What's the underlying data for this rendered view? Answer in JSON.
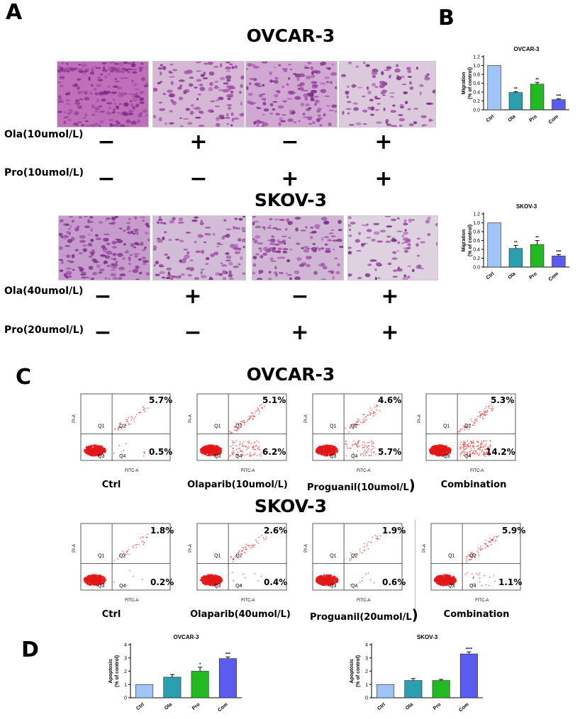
{
  "panel_letters": {
    "a": "A",
    "b": "B",
    "c": "C",
    "d": "D"
  },
  "panelA": {
    "ovcar": {
      "title": "OVCAR-3",
      "row1_label": "Ola(10umol/L)",
      "row2_label": "Pro(10umol/L)",
      "row1_signs": [
        "−",
        "+",
        "−",
        "+"
      ],
      "row2_signs": [
        "−",
        "−",
        "+",
        "+"
      ]
    },
    "skov": {
      "title": "SKOV-3",
      "row1_label": "Ola(40umol/L)",
      "row2_label": "Pro(20umol/L)",
      "row1_signs": [
        "−",
        "+",
        "−",
        "+"
      ],
      "row2_signs": [
        "−",
        "−",
        "+",
        "+"
      ]
    }
  },
  "panelC": {
    "ovcar": {
      "title": "OVCAR-3",
      "plots": [
        {
          "caption": "Ctrl",
          "q2": "5.7%",
          "q4": "0.5%"
        },
        {
          "caption": "Olaparib(10umol/L)",
          "q2": "5.1%",
          "q4": "6.2%"
        },
        {
          "caption": "Proguanil(10umol/L",
          "paren": ")",
          "q2": "4.6%",
          "q4": "5.7%"
        },
        {
          "caption": "Combination",
          "q2": "5.3%",
          "q4": "14.2%"
        }
      ]
    },
    "skov": {
      "title": "SKOV-3",
      "plots": [
        {
          "caption": "Ctrl",
          "q2": "1.8%",
          "q4": "0.2%"
        },
        {
          "caption": "Olaparib(40umol/L)",
          "q2": "2.6%",
          "q4": "0.4%"
        },
        {
          "caption": "Proguanil(20umol/L",
          "paren": ")",
          "q2": "1.9%",
          "q4": "0.6%"
        },
        {
          "caption": "Combination",
          "q2": "5.9%",
          "q4": "1.1%"
        }
      ]
    },
    "axis": {
      "x": "FITC-A",
      "y": "PI-A",
      "q1": "Q1",
      "q2": "Q2",
      "q3": "Q3",
      "q4": "Q4"
    }
  },
  "chart_data": [
    {
      "id": "b1",
      "type": "bar",
      "title": "OVCAR-3",
      "ylabel": "Migration\n(% of control)",
      "categories": [
        "Ctrl",
        "Ola",
        "Pro",
        "Com"
      ],
      "values": [
        1.0,
        0.39,
        0.58,
        0.23
      ],
      "errors": [
        0,
        0.02,
        0.04,
        0.02
      ],
      "sig": [
        "",
        "**",
        "**",
        "***"
      ],
      "ylim": [
        0,
        1.2
      ],
      "yticks": [
        0.0,
        0.2,
        0.4,
        0.6,
        0.8,
        1.0,
        1.2
      ],
      "ytick_labels": [
        "0.0",
        "0.2",
        "0.4",
        "0.6",
        "0.8",
        "1.0",
        "1.2"
      ],
      "colors": [
        "#9fc5f8",
        "#2b9fb0",
        "#22b922",
        "#5b5bef"
      ]
    },
    {
      "id": "b2",
      "type": "bar",
      "title": "SKOV-3",
      "ylabel": "Migration\n(% of control)",
      "categories": [
        "Ctrl",
        "Ola",
        "Pro",
        "Com"
      ],
      "values": [
        1.0,
        0.42,
        0.51,
        0.25
      ],
      "errors": [
        0,
        0.07,
        0.09,
        0.03
      ],
      "sig": [
        "",
        "**",
        "**",
        "***"
      ],
      "ylim": [
        0,
        1.2
      ],
      "yticks": [
        0.0,
        0.2,
        0.4,
        0.6,
        0.8,
        1.0,
        1.2
      ],
      "ytick_labels": [
        "0.0",
        "0.2",
        "0.4",
        "0.6",
        "0.8",
        "1.0",
        "1.2"
      ],
      "colors": [
        "#9fc5f8",
        "#2b9fb0",
        "#22b922",
        "#5b5bef"
      ]
    },
    {
      "id": "d1",
      "type": "bar",
      "title": "OVCAR-3",
      "ylabel": "Apoptosis\n(% of control)",
      "categories": [
        "Ctrl",
        "Ola",
        "Pro",
        "Com"
      ],
      "values": [
        1.0,
        1.55,
        2.0,
        2.95
      ],
      "errors": [
        0,
        0.2,
        0.3,
        0.12
      ],
      "sig": [
        "",
        "",
        "*",
        "***"
      ],
      "ylim": [
        0,
        4
      ],
      "yticks": [
        0,
        1,
        2,
        3,
        4
      ],
      "ytick_labels": [
        "0",
        "1",
        "2",
        "3",
        "4"
      ],
      "colors": [
        "#9fc5f8",
        "#2b9fb0",
        "#22b922",
        "#5b5bef"
      ]
    },
    {
      "id": "d2",
      "type": "bar",
      "title": "SKOV-3",
      "ylabel": "Apoptosis\n(% of control)",
      "categories": [
        "Ctrl",
        "Ola",
        "Pro",
        "Com"
      ],
      "values": [
        1.0,
        1.3,
        1.3,
        3.3
      ],
      "errors": [
        0,
        0.15,
        0.08,
        0.15
      ],
      "sig": [
        "",
        "",
        "",
        "****"
      ],
      "ylim": [
        0,
        4
      ],
      "yticks": [
        0,
        1,
        2,
        3,
        4
      ],
      "ytick_labels": [
        "0",
        "1",
        "2",
        "3",
        "4"
      ],
      "colors": [
        "#9fc5f8",
        "#2b9fb0",
        "#22b922",
        "#5b5bef"
      ]
    }
  ]
}
